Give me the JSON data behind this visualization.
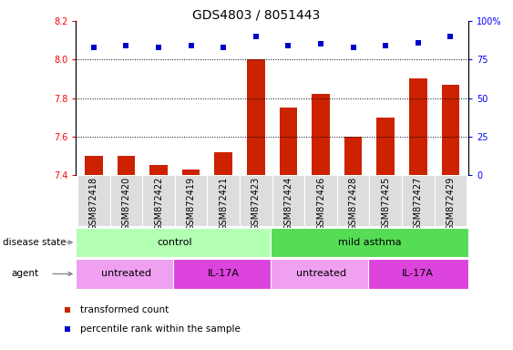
{
  "title": "GDS4803 / 8051443",
  "samples": [
    "GSM872418",
    "GSM872420",
    "GSM872422",
    "GSM872419",
    "GSM872421",
    "GSM872423",
    "GSM872424",
    "GSM872426",
    "GSM872428",
    "GSM872425",
    "GSM872427",
    "GSM872429"
  ],
  "bar_values": [
    7.5,
    7.5,
    7.45,
    7.43,
    7.52,
    8.0,
    7.75,
    7.82,
    7.6,
    7.7,
    7.9,
    7.87
  ],
  "percentile_values": [
    83,
    84,
    83,
    84,
    83,
    90,
    84,
    85,
    83,
    84,
    86,
    90
  ],
  "bar_color": "#cc2200",
  "dot_color": "#0000cc",
  "ylim_left": [
    7.4,
    8.2
  ],
  "ylim_right": [
    0,
    100
  ],
  "yticks_left": [
    7.4,
    7.6,
    7.8,
    8.0,
    8.2
  ],
  "yticks_right": [
    0,
    25,
    50,
    75,
    100
  ],
  "dotted_lines": [
    7.6,
    7.8,
    8.0
  ],
  "disease_state_groups": [
    {
      "label": "control",
      "start": 0,
      "end": 6,
      "color": "#b3ffb3"
    },
    {
      "label": "mild asthma",
      "start": 6,
      "end": 12,
      "color": "#55dd55"
    }
  ],
  "agent_groups": [
    {
      "label": "untreated",
      "start": 0,
      "end": 3,
      "color": "#f0a0f0"
    },
    {
      "label": "IL-17A",
      "start": 3,
      "end": 6,
      "color": "#dd44dd"
    },
    {
      "label": "untreated",
      "start": 6,
      "end": 9,
      "color": "#f0a0f0"
    },
    {
      "label": "IL-17A",
      "start": 9,
      "end": 12,
      "color": "#dd44dd"
    }
  ],
  "legend_items": [
    {
      "label": "transformed count",
      "color": "#cc2200",
      "marker": "s"
    },
    {
      "label": "percentile rank within the sample",
      "color": "#0000cc",
      "marker": "s"
    }
  ],
  "label_disease_state": "disease state",
  "label_agent": "agent",
  "title_fontsize": 10,
  "tick_fontsize": 7,
  "bar_width": 0.55,
  "xticklabel_bg": "#dddddd"
}
